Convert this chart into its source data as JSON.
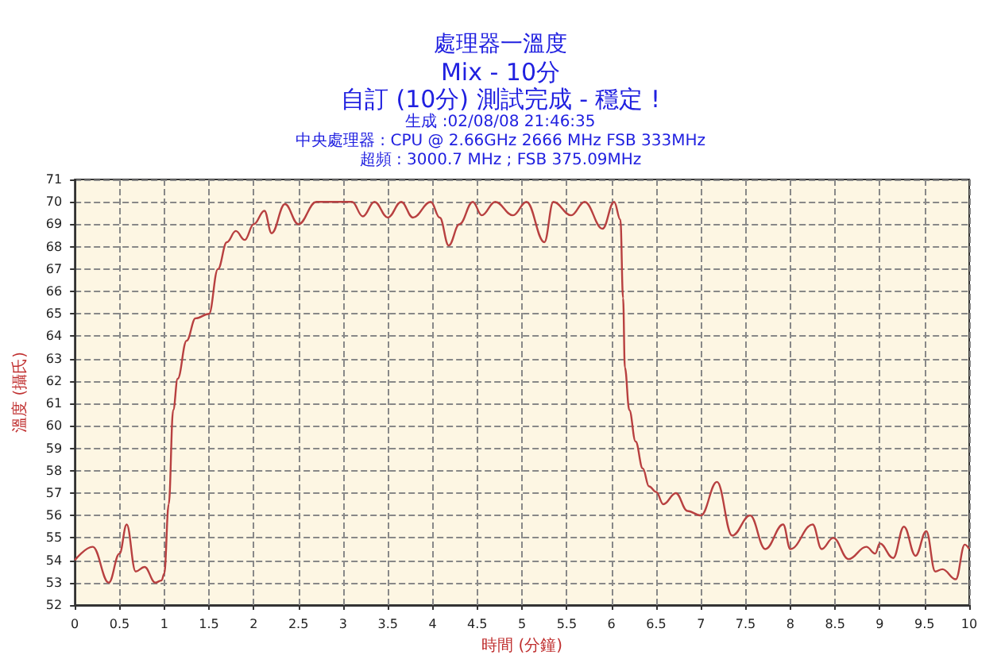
{
  "chart_data": {
    "type": "line",
    "title": "處理器一溫度",
    "subtitle": "Mix - 10分",
    "annotations": [
      "自訂 (10分) 測試完成 - 穩定 !",
      "生成 :02/08/08 21:46:35",
      "中央處理器 : CPU @ 2.66GHz 2666 MHz FSB 333MHz",
      "超頻 : 3000.7 MHz ; FSB 375.09MHz"
    ],
    "xlabel": "時間 (分鐘)",
    "ylabel": "溫度 (攝氏)",
    "x": [
      0,
      0.2,
      0.38,
      0.5,
      0.58,
      0.68,
      0.78,
      0.9,
      0.97,
      1.0,
      1.05,
      1.1,
      1.15,
      1.25,
      1.35,
      1.5,
      1.6,
      1.7,
      1.8,
      1.9,
      2.0,
      2.12,
      2.2,
      2.35,
      2.5,
      2.7,
      3.0,
      3.1,
      3.22,
      3.35,
      3.5,
      3.65,
      3.78,
      3.98,
      4.08,
      4.18,
      4.3,
      4.45,
      4.55,
      4.7,
      4.9,
      5.05,
      5.25,
      5.35,
      5.55,
      5.7,
      5.9,
      6.03,
      6.1,
      6.13,
      6.15,
      6.2,
      6.27,
      6.35,
      6.42,
      6.5,
      6.58,
      6.72,
      6.85,
      7.0,
      7.18,
      7.35,
      7.55,
      7.72,
      7.92,
      8.0,
      8.25,
      8.35,
      8.48,
      8.65,
      8.85,
      8.95,
      9.0,
      9.15,
      9.27,
      9.4,
      9.52,
      9.62,
      9.7,
      9.85,
      9.95,
      10
    ],
    "values": [
      54,
      54.6,
      53,
      54.3,
      55.6,
      53.5,
      53.7,
      53,
      53.1,
      53.4,
      56.5,
      60.7,
      62.1,
      63.8,
      64.8,
      65,
      67,
      68.2,
      68.7,
      68.3,
      69,
      69.6,
      68.6,
      69.9,
      69,
      70,
      70,
      70,
      69.35,
      70,
      69.3,
      70,
      69.3,
      70,
      69.3,
      68.05,
      69,
      70,
      69.4,
      70,
      69.4,
      70,
      68.2,
      70,
      69.4,
      70,
      68.8,
      70,
      69.2,
      65.7,
      62.6,
      60.7,
      59.3,
      58.1,
      57.3,
      57.05,
      56.5,
      57,
      56.2,
      56,
      57.5,
      55.1,
      56,
      54.5,
      55.6,
      54.5,
      55.6,
      54.5,
      55,
      54.05,
      54.6,
      54.3,
      54.75,
      54.1,
      55.5,
      54.2,
      55.3,
      53.5,
      53.6,
      53.15,
      54.7,
      54.5
    ],
    "color": "#b84040",
    "xlim": [
      0,
      10
    ],
    "xticks": [
      0,
      0.5,
      1,
      1.5,
      2,
      2.5,
      3,
      3.5,
      4,
      4.5,
      5,
      5.5,
      6,
      6.5,
      7,
      7.5,
      8,
      8.5,
      9,
      9.5,
      10
    ],
    "ylim": [
      52,
      71
    ],
    "yticks": [
      52,
      53,
      54,
      55,
      56,
      57,
      58,
      59,
      60,
      61,
      62,
      63,
      64,
      65,
      66,
      67,
      68,
      69,
      70,
      71
    ],
    "grid": true,
    "marker": "none",
    "line_style": "solid"
  }
}
